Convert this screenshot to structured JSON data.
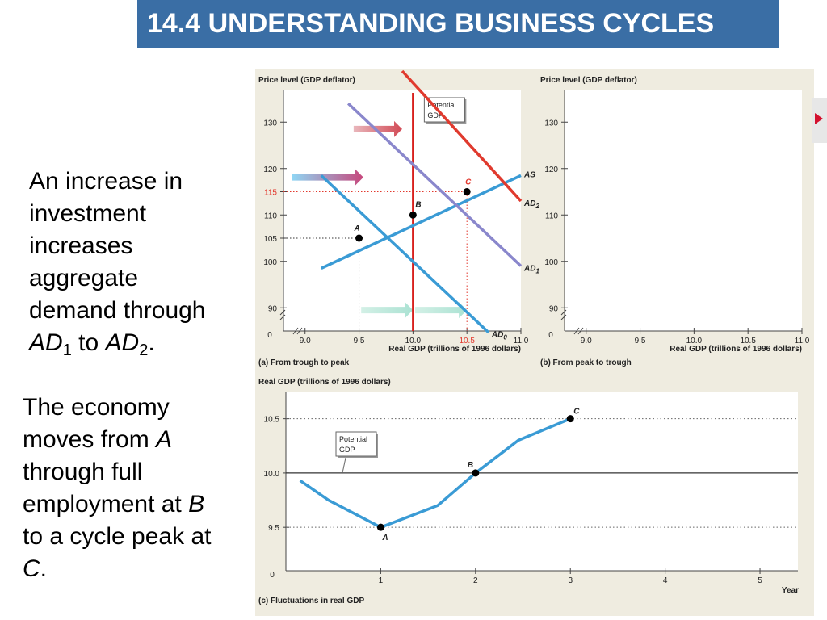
{
  "title": "14.4 UNDERSTANDING BUSINESS CYCLES",
  "text_block_1": {
    "line1": "An increase in",
    "line2": "investment",
    "line3": "increases",
    "line4": "aggregate",
    "line5": "demand through",
    "ad": "AD",
    "sub1": "1",
    "to": " to ",
    "sub2": "2",
    "end": "."
  },
  "text_block_2": {
    "line1": "The economy",
    "line2_prefix": "moves from ",
    "line2_var": "A",
    "line3": "through full",
    "line4_prefix": "employment at ",
    "line4_var": "B",
    "line5": "to a cycle peak at",
    "line6_var": "C",
    "line6_end": "."
  },
  "colors": {
    "title_bg": "#3a6ea5",
    "AS": "#3a9bd5",
    "AD0": "#3a9bd5",
    "AD1": "#8a87cc",
    "AD2": "#e03a2e",
    "potential_gdp": "#d8201d",
    "highlight": "#e2382d",
    "panel_bg": "#efece0"
  },
  "chart_data": [
    {
      "type": "line",
      "caption": "(a) From trough to peak",
      "ylabel": "Price level (GDP deflator)",
      "xlabel": "Real GDP (trillions of 1996 dollars)",
      "xlim": [
        8.8,
        11.0
      ],
      "ylim": [
        85,
        137
      ],
      "origin_label": "0",
      "xticks": [
        9.0,
        9.5,
        10.0,
        10.5,
        11.0
      ],
      "xtick_labels": [
        "9.0",
        "9.5",
        "10.0",
        "10.5",
        "11.0"
      ],
      "yticks": [
        90,
        100,
        105,
        110,
        115,
        120,
        130
      ],
      "ytick_labels": [
        "90",
        "100",
        "105",
        "110",
        "115",
        "120",
        "130"
      ],
      "highlight_ytick": "115",
      "highlight_xtick": "10.5",
      "series": [
        {
          "name": "AS",
          "x": [
            9.15,
            11.0
          ],
          "y": [
            98.5,
            118.5
          ]
        },
        {
          "name": "AD0",
          "x": [
            9.15,
            10.7
          ],
          "y": [
            118.5,
            84.7
          ]
        },
        {
          "name": "AD1",
          "x": [
            9.4,
            11.0
          ],
          "y": [
            134,
            99
          ]
        },
        {
          "name": "AD2",
          "x": [
            9.9,
            11.0
          ],
          "y": [
            141,
            113
          ]
        }
      ],
      "potential_gdp": {
        "x": 10.0,
        "label_line1": "Potential",
        "label_line2": "GDP"
      },
      "points": [
        {
          "label": "A",
          "x": 9.5,
          "y": 105
        },
        {
          "label": "B",
          "x": 10.0,
          "y": 110
        },
        {
          "label": "C",
          "x": 10.5,
          "y": 115
        }
      ]
    },
    {
      "type": "line",
      "caption": "(b) From peak to trough",
      "ylabel": "Price level (GDP deflator)",
      "xlabel": "Real GDP (trillions of 1996 dollars)",
      "xlim": [
        8.8,
        11.0
      ],
      "ylim": [
        85,
        137
      ],
      "origin_label": "0",
      "xticks": [
        9.0,
        9.5,
        10.0,
        10.5,
        11.0
      ],
      "xtick_labels": [
        "9.0",
        "9.5",
        "10.0",
        "10.5",
        "11.0"
      ],
      "yticks": [
        90,
        100,
        110,
        120,
        130
      ],
      "ytick_labels": [
        "90",
        "100",
        "110",
        "120",
        "130"
      ],
      "series": []
    },
    {
      "type": "line",
      "caption": "(c) Fluctuations in real GDP",
      "ylabel": "Real GDP (trillions of 1996 dollars)",
      "xlabel": "Year",
      "xlim": [
        0,
        5.4
      ],
      "ylim": [
        9.1,
        10.75
      ],
      "origin_label": "0",
      "xticks": [
        1,
        2,
        3,
        4,
        5
      ],
      "xtick_labels": [
        "1",
        "2",
        "3",
        "4",
        "5"
      ],
      "yticks": [
        9.5,
        10.0,
        10.5
      ],
      "ytick_labels": [
        "9.5",
        "10.0",
        "10.5"
      ],
      "potential_gdp": {
        "y": 10.0,
        "label_line1": "Potential",
        "label_line2": "GDP"
      },
      "series": [
        {
          "name": "Real GDP",
          "x": [
            0.15,
            0.45,
            1.0,
            1.6,
            2.0,
            2.45,
            3.0
          ],
          "y": [
            9.93,
            9.75,
            9.5,
            9.7,
            10.0,
            10.3,
            10.5
          ]
        }
      ],
      "points": [
        {
          "label": "A",
          "x": 1.0,
          "y": 9.5
        },
        {
          "label": "B",
          "x": 2.0,
          "y": 10.0
        },
        {
          "label": "C",
          "x": 3.0,
          "y": 10.5
        }
      ]
    }
  ]
}
